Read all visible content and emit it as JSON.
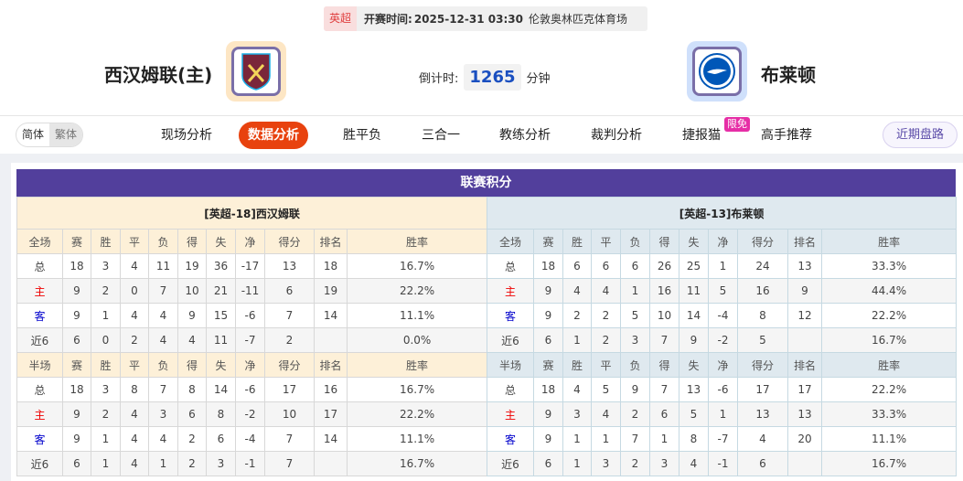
{
  "match": {
    "league": "英超",
    "time_label": "开赛时间:",
    "time": "2025-12-31 03:30",
    "venue": "伦敦奥林匹克体育场"
  },
  "home": {
    "name": "西汉姆联(主)",
    "logo": "west-ham-crest"
  },
  "away": {
    "name": "布莱顿",
    "logo": "brighton-crest"
  },
  "countdown": {
    "label": "倒计时:",
    "value": "1265",
    "unit": "分钟"
  },
  "lang": {
    "simplified": "简体",
    "traditional": "繁体"
  },
  "nav": [
    "现场分析",
    "数据分析",
    "胜平负",
    "三合一",
    "教练分析",
    "裁判分析",
    "捷报猫",
    "高手推荐"
  ],
  "nav_active": 1,
  "nav_badge": "限免",
  "recent_button": "近期盘路",
  "standings": {
    "title": "联赛积分",
    "columns": [
      "赛",
      "胜",
      "平",
      "负",
      "得",
      "失",
      "净",
      "得分",
      "排名",
      "胜率"
    ],
    "teams": [
      {
        "header": "[英超-18]西汉姆联",
        "sections": [
          {
            "label": "全场",
            "rows": [
              [
                "总",
                "18",
                "3",
                "4",
                "11",
                "19",
                "36",
                "-17",
                "13",
                "18",
                "16.7%"
              ],
              [
                "主",
                "9",
                "2",
                "0",
                "7",
                "10",
                "21",
                "-11",
                "6",
                "19",
                "22.2%"
              ],
              [
                "客",
                "9",
                "1",
                "4",
                "4",
                "9",
                "15",
                "-6",
                "7",
                "14",
                "11.1%"
              ],
              [
                "近6",
                "6",
                "0",
                "2",
                "4",
                "4",
                "11",
                "-7",
                "2",
                "",
                "0.0%"
              ]
            ]
          },
          {
            "label": "半场",
            "rows": [
              [
                "总",
                "18",
                "3",
                "8",
                "7",
                "8",
                "14",
                "-6",
                "17",
                "16",
                "16.7%"
              ],
              [
                "主",
                "9",
                "2",
                "4",
                "3",
                "6",
                "8",
                "-2",
                "10",
                "17",
                "22.2%"
              ],
              [
                "客",
                "9",
                "1",
                "4",
                "4",
                "2",
                "6",
                "-4",
                "7",
                "14",
                "11.1%"
              ],
              [
                "近6",
                "6",
                "1",
                "4",
                "1",
                "2",
                "3",
                "-1",
                "7",
                "",
                "16.7%"
              ]
            ]
          }
        ]
      },
      {
        "header": "[英超-13]布莱顿",
        "sections": [
          {
            "label": "全场",
            "rows": [
              [
                "总",
                "18",
                "6",
                "6",
                "6",
                "26",
                "25",
                "1",
                "24",
                "13",
                "33.3%"
              ],
              [
                "主",
                "9",
                "4",
                "4",
                "1",
                "16",
                "11",
                "5",
                "16",
                "9",
                "44.4%"
              ],
              [
                "客",
                "9",
                "2",
                "2",
                "5",
                "10",
                "14",
                "-4",
                "8",
                "12",
                "22.2%"
              ],
              [
                "近6",
                "6",
                "1",
                "2",
                "3",
                "7",
                "9",
                "-2",
                "5",
                "",
                "16.7%"
              ]
            ]
          },
          {
            "label": "半场",
            "rows": [
              [
                "总",
                "18",
                "4",
                "5",
                "9",
                "7",
                "13",
                "-6",
                "17",
                "17",
                "22.2%"
              ],
              [
                "主",
                "9",
                "3",
                "4",
                "2",
                "6",
                "5",
                "1",
                "13",
                "13",
                "33.3%"
              ],
              [
                "客",
                "9",
                "1",
                "1",
                "7",
                "1",
                "8",
                "-7",
                "4",
                "20",
                "11.1%"
              ],
              [
                "近6",
                "6",
                "1",
                "3",
                "2",
                "3",
                "4",
                "-1",
                "6",
                "",
                "16.7%"
              ]
            ]
          }
        ]
      }
    ]
  }
}
